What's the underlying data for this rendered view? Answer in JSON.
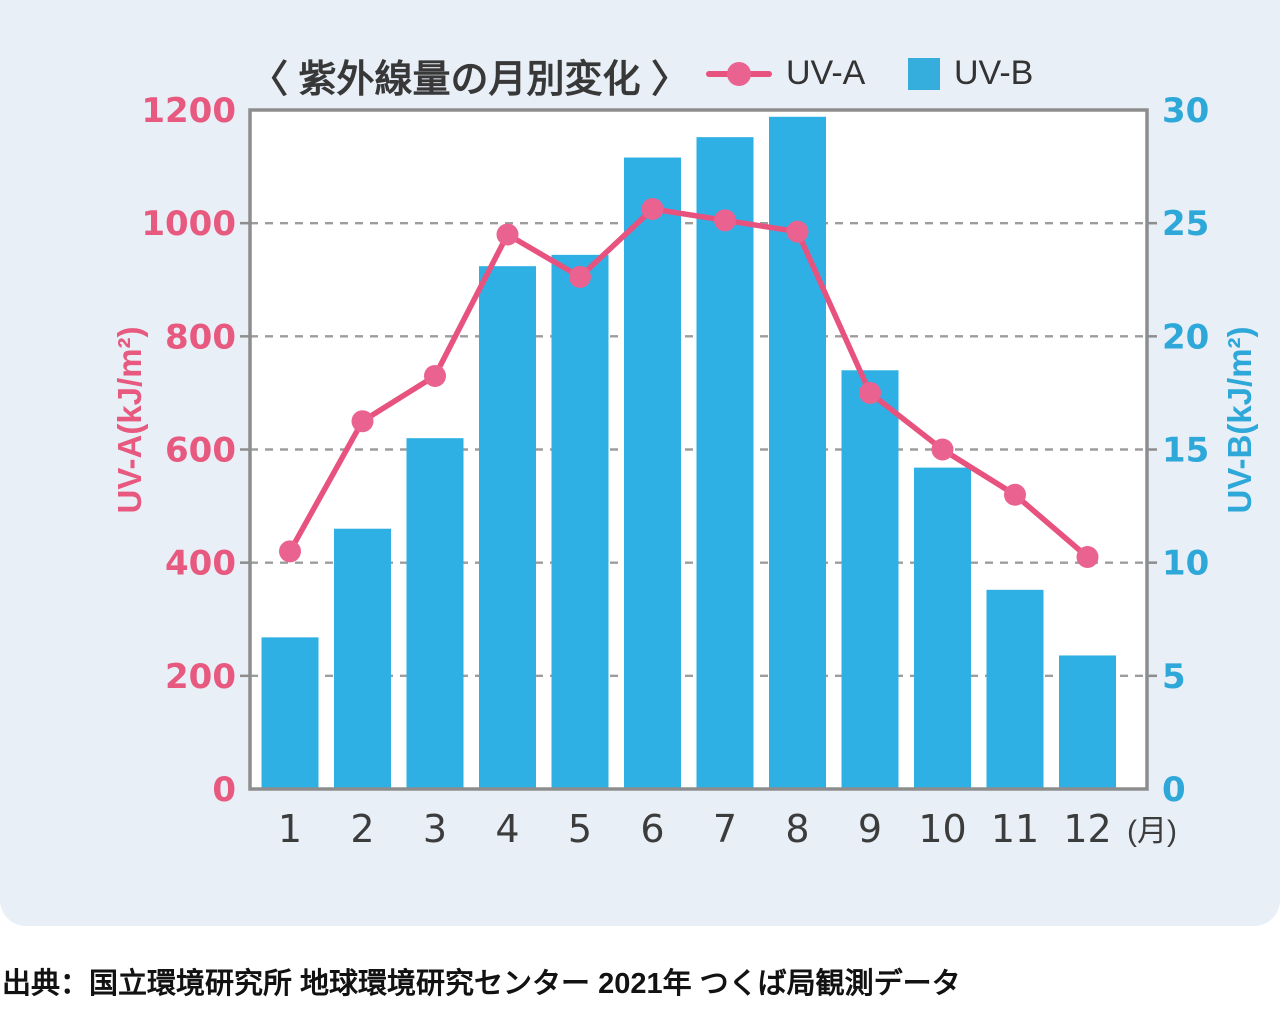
{
  "source": "出典：国立環境研究所 地球環境研究センター 2021年 つくば局観測データ",
  "chart_data": {
    "type": "bar+line",
    "title": "〈 紫外線量の月別変化 〉",
    "categories": [
      "1",
      "2",
      "3",
      "4",
      "5",
      "6",
      "7",
      "8",
      "9",
      "10",
      "11",
      "12"
    ],
    "x_unit": "(月)",
    "series": [
      {
        "name": "UV-A",
        "type": "line",
        "axis": "left",
        "color": "#e7537e",
        "marker_color": "#ea6390",
        "values": [
          420,
          650,
          730,
          980,
          905,
          1025,
          1005,
          985,
          700,
          600,
          520,
          410
        ]
      },
      {
        "name": "UV-B",
        "type": "bar",
        "axis": "right",
        "color": "#2eb0e4",
        "values": [
          6.7,
          11.5,
          15.5,
          23.1,
          23.6,
          27.9,
          28.8,
          29.7,
          18.5,
          14.2,
          8.8,
          5.9
        ]
      }
    ],
    "left_axis": {
      "label": "UV-A(kJ/m²)",
      "min": 0,
      "max": 1200,
      "step": 200,
      "color": "#e7597f"
    },
    "right_axis": {
      "label": "UV-B(kJ/m²)",
      "min": 0,
      "max": 30,
      "step": 5,
      "color": "#2ea7d9"
    },
    "grid": "horizontal-dashed",
    "legend_position": "top",
    "x_tick_color": "#3c3c3c",
    "grid_color": "#9d9d9d",
    "frame_color": "#8d8d8d",
    "plot_bg": "#ffffff"
  }
}
